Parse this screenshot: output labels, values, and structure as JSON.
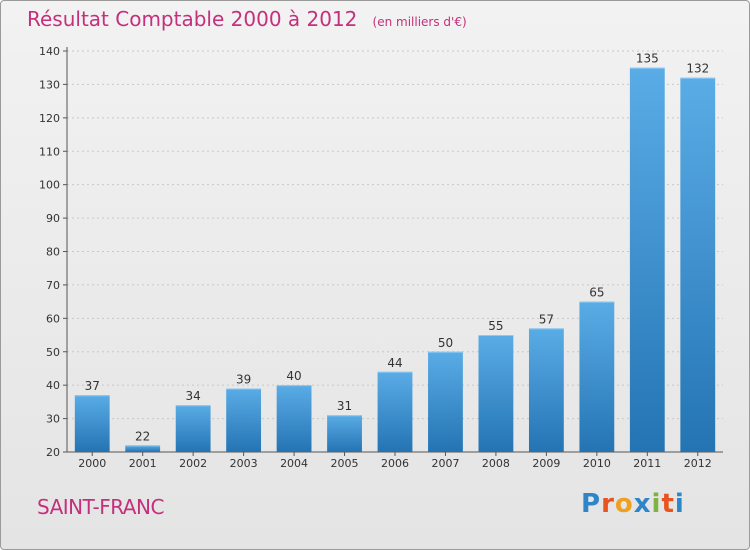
{
  "header": {
    "title": "Résultat Comptable 2000 à 2012",
    "subtitle": "(en milliers d'€)"
  },
  "footer": {
    "city": "SAINT-FRANC",
    "logo_text": "Proxiti",
    "logo_colors": [
      "#2e86c8",
      "#e8531f",
      "#f0a020",
      "#2e86c8",
      "#7cb342",
      "#e8531f",
      "#2e86c8"
    ]
  },
  "colors": {
    "bar_top": "#5aace6",
    "bar_bottom": "#2474b4",
    "accent": "#c4307c"
  },
  "chart_data": {
    "type": "bar",
    "categories": [
      "2000",
      "2001",
      "2002",
      "2003",
      "2004",
      "2005",
      "2006",
      "2007",
      "2008",
      "2009",
      "2010",
      "2011",
      "2012"
    ],
    "values": [
      37,
      22,
      34,
      39,
      40,
      31,
      44,
      50,
      55,
      57,
      65,
      135,
      132
    ],
    "title": "Résultat Comptable 2000 à 2012",
    "subtitle": "(en milliers d'€)",
    "xlabel": "",
    "ylabel": "",
    "ylim": [
      20,
      140
    ],
    "yticks": [
      20,
      30,
      40,
      50,
      60,
      70,
      80,
      90,
      100,
      110,
      120,
      130,
      140
    ],
    "grid": true,
    "data_labels": true
  }
}
